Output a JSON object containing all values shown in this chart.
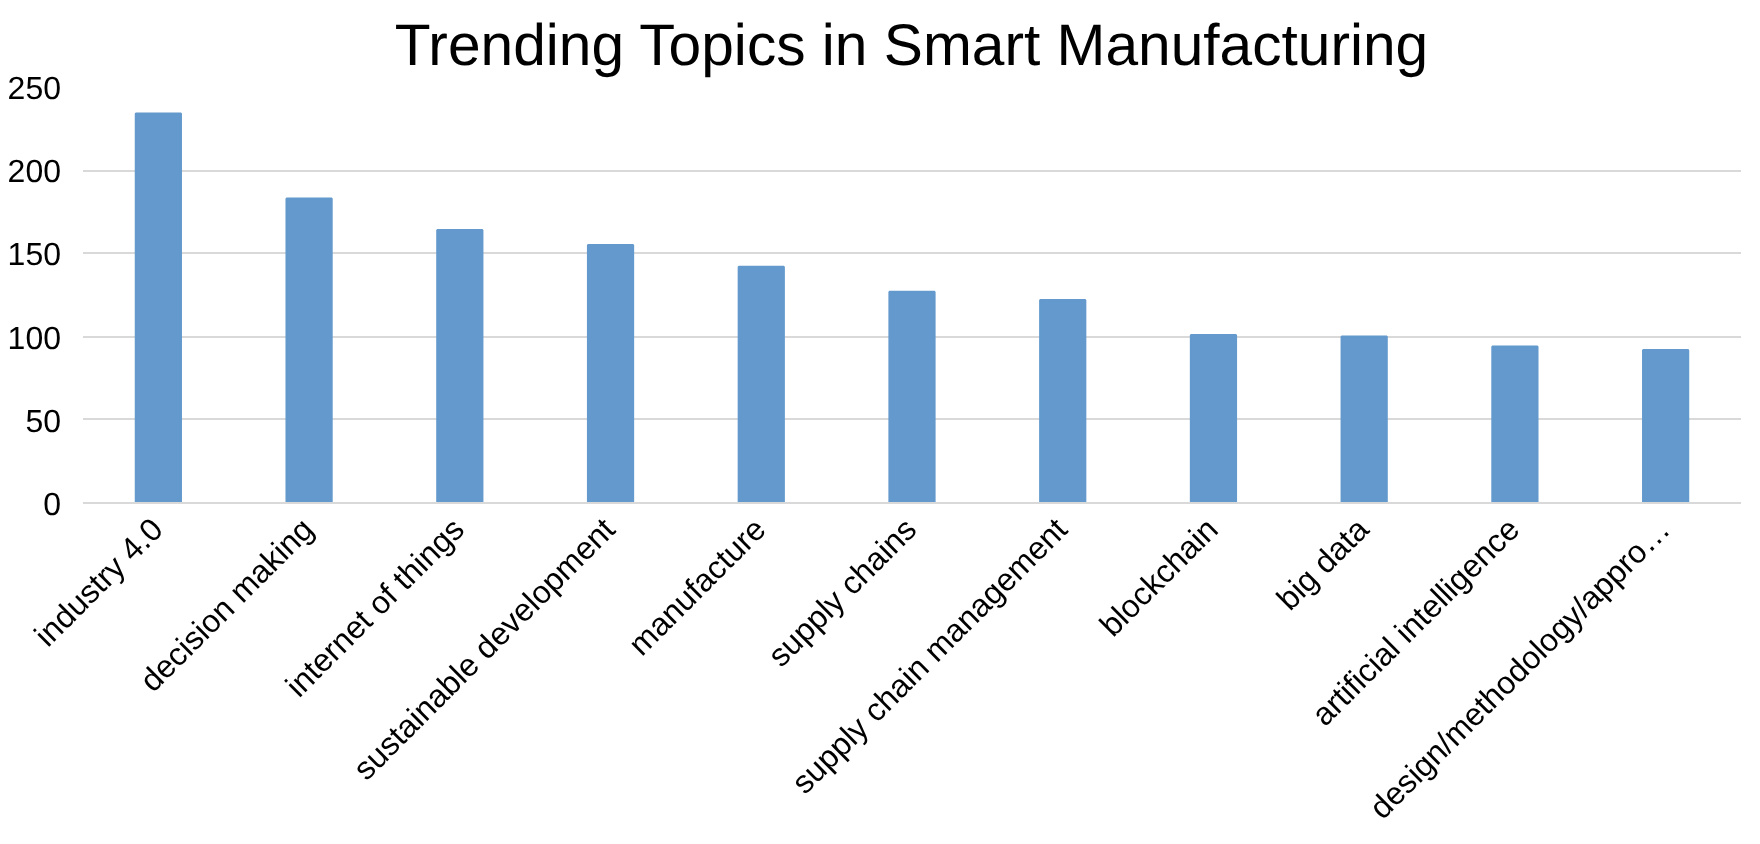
{
  "chart_data": {
    "type": "bar",
    "title": "Trending Topics in Smart Manufacturing",
    "categories": [
      "industry 4.0",
      "decision making",
      "internet of things",
      "sustainable development",
      "manufacture",
      "supply chains",
      "supply chain management",
      "blockchain",
      "big data",
      "artificial intelligence",
      "design/methodology/appro…"
    ],
    "values": [
      234,
      183,
      164,
      155,
      142,
      127,
      122,
      101,
      100,
      94,
      92
    ],
    "color": "#6399cc",
    "ylim": [
      0,
      250
    ],
    "yticks": [
      0,
      50,
      100,
      150,
      200,
      250
    ],
    "grid": "y"
  }
}
